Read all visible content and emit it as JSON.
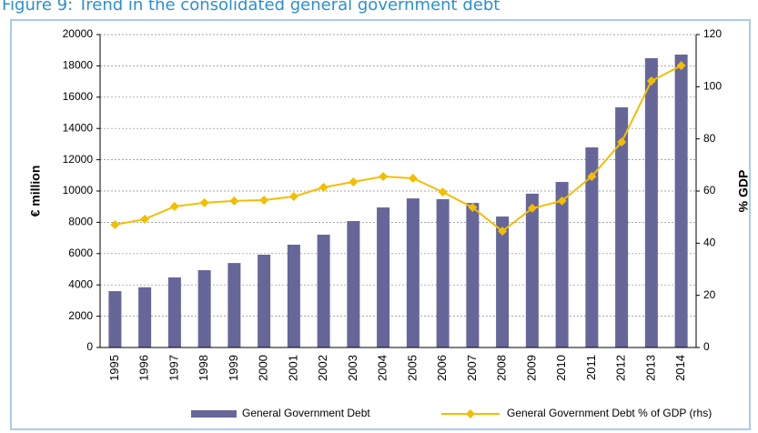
{
  "chart_data": {
    "type": "bar_line",
    "title": "Figure 9: Trend in the consolidated general government debt",
    "ylabel": "€ million",
    "y2label": "% GDP",
    "categories": [
      "1995",
      "1996",
      "1997",
      "1998",
      "1999",
      "2000",
      "2001",
      "2002",
      "2003",
      "2004",
      "2005",
      "2006",
      "2007",
      "2008",
      "2009",
      "2010",
      "2011",
      "2012",
      "2013",
      "2014"
    ],
    "series": [
      {
        "name": "General Government Debt",
        "type": "bar",
        "color": "#666699",
        "axis": "y",
        "values": [
          3600,
          3850,
          4480,
          4940,
          5400,
          5930,
          6570,
          7210,
          8080,
          8950,
          9530,
          9480,
          9240,
          8370,
          9830,
          10580,
          12790,
          15350,
          18490,
          18720
        ]
      },
      {
        "name": "General Government Debt % of GDP (rhs)",
        "type": "line",
        "color": "#f2be00",
        "axis": "y2",
        "values": [
          47.1,
          49.2,
          54.1,
          55.5,
          56.2,
          56.5,
          57.9,
          61.4,
          63.5,
          65.6,
          64.9,
          59.6,
          53.7,
          44.6,
          53.4,
          56.2,
          65.6,
          78.8,
          102.2,
          108.1
        ]
      }
    ],
    "ylim": [
      0,
      20000
    ],
    "yticks": [
      0,
      2000,
      4000,
      6000,
      8000,
      10000,
      12000,
      14000,
      16000,
      18000,
      20000
    ],
    "y2lim": [
      0,
      120
    ],
    "y2ticks": [
      0,
      20,
      40,
      60,
      80,
      100,
      120
    ],
    "grid": true,
    "legend": "bottom"
  }
}
